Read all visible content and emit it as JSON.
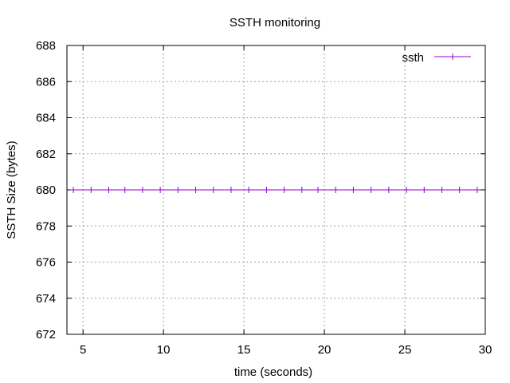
{
  "chart_data": {
    "type": "line",
    "title": "SSTH monitoring",
    "xlabel": "time (seconds)",
    "ylabel": "SSTH Size (bytes)",
    "xlim": [
      4,
      30
    ],
    "ylim": [
      672,
      688
    ],
    "xticks": [
      5,
      10,
      15,
      20,
      25,
      30
    ],
    "yticks": [
      672,
      674,
      676,
      678,
      680,
      682,
      684,
      686,
      688
    ],
    "grid": true,
    "legend_position": "top-right",
    "series": [
      {
        "name": "ssth",
        "color": "#9400d3",
        "marker": "plus",
        "x": [
          4.4,
          5.5,
          6.6,
          7.6,
          8.7,
          9.8,
          10.9,
          12.0,
          13.1,
          14.2,
          15.3,
          16.4,
          17.5,
          18.6,
          19.6,
          20.7,
          21.8,
          22.9,
          24.0,
          25.1,
          26.2,
          27.3,
          28.4,
          29.5
        ],
        "y": [
          680,
          680,
          680,
          680,
          680,
          680,
          680,
          680,
          680,
          680,
          680,
          680,
          680,
          680,
          680,
          680,
          680,
          680,
          680,
          680,
          680,
          680,
          680,
          680
        ]
      }
    ]
  }
}
